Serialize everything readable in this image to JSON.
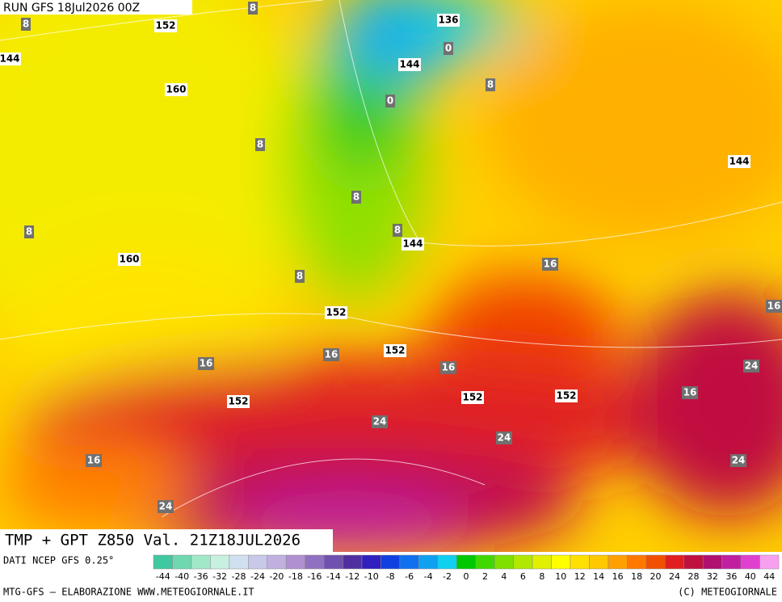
{
  "header": {
    "run": "RUN GFS 18Jul2026 00Z"
  },
  "map": {
    "title": "TMP + GPT Z850 Val. 21Z18JUL2026",
    "height_labels": [
      "152",
      "144",
      "136",
      "144",
      "160",
      "144",
      "144",
      "160",
      "152",
      "152",
      "152",
      "152",
      "152"
    ],
    "temp_labels": [
      "8",
      "8",
      "0",
      "0",
      "8",
      "8",
      "8",
      "8",
      "8",
      "8",
      "16",
      "16",
      "16",
      "16",
      "24",
      "16",
      "24",
      "24",
      "16",
      "24",
      "24",
      "16"
    ]
  },
  "footer": {
    "source": "DATI NCEP GFS 0.25°",
    "credits": "MTG-GFS — ELABORAZIONE WWW.METEOGIORNALE.IT",
    "copyright": "(C) METEOGIORNALE"
  },
  "colorbar": {
    "labels": [
      -44,
      -40,
      -36,
      -32,
      -28,
      -24,
      -20,
      -18,
      -16,
      -14,
      -12,
      -10,
      -8,
      -6,
      -4,
      -2,
      0,
      2,
      4,
      6,
      8,
      10,
      12,
      14,
      16,
      18,
      20,
      24,
      28,
      32,
      36,
      40,
      44
    ],
    "colors": [
      "#40c8a0",
      "#70d8b0",
      "#a0e8c8",
      "#c8f0e0",
      "#d0e0f0",
      "#c8c8e8",
      "#c0b0e0",
      "#b090d0",
      "#9070c0",
      "#7050b0",
      "#5030a0",
      "#3020c0",
      "#1040e0",
      "#1070f0",
      "#10a0f0",
      "#10d0f0",
      "#00c800",
      "#40d800",
      "#80e000",
      "#b0e800",
      "#e0f000",
      "#ffff00",
      "#ffe000",
      "#ffc800",
      "#ffa000",
      "#ff7800",
      "#f05000",
      "#e02020",
      "#c01040",
      "#b01070",
      "#c020a0",
      "#e040d0",
      "#f8a0f0"
    ]
  }
}
